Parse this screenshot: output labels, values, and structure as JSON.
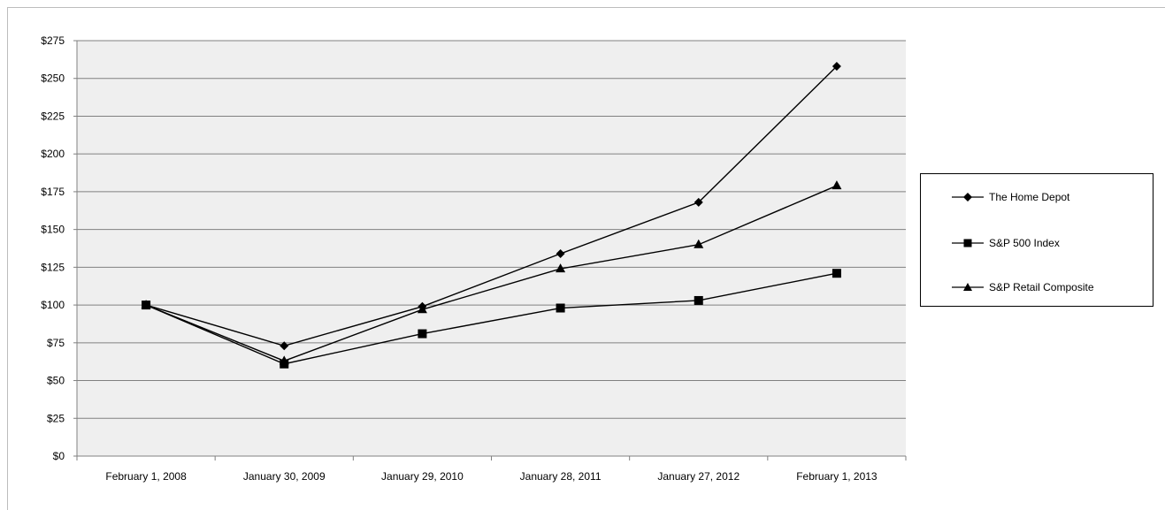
{
  "chart_data": {
    "type": "line",
    "categories": [
      "February 1, 2008",
      "January 30, 2009",
      "January 29, 2010",
      "January 28, 2011",
      "January 27, 2012",
      "February 1, 2013"
    ],
    "y_ticks": [
      "$0",
      "$25",
      "$50",
      "$75",
      "$100",
      "$125",
      "$150",
      "$175",
      "$200",
      "$225",
      "$250",
      "$275"
    ],
    "ylim": [
      0,
      275
    ],
    "grid": true,
    "legend_position": "right",
    "series": [
      {
        "name": "The Home Depot",
        "marker": "diamond",
        "values": [
          100,
          73,
          99,
          134,
          168,
          258
        ]
      },
      {
        "name": "S&P 500 Index",
        "marker": "square",
        "values": [
          100,
          61,
          81,
          98,
          103,
          121
        ]
      },
      {
        "name": "S&P Retail Composite",
        "marker": "triangle",
        "values": [
          100,
          63,
          97,
          124,
          140,
          179
        ]
      }
    ],
    "colors": {
      "plot_background": "#efefef",
      "line": "#000000",
      "grid": "#808080"
    }
  }
}
